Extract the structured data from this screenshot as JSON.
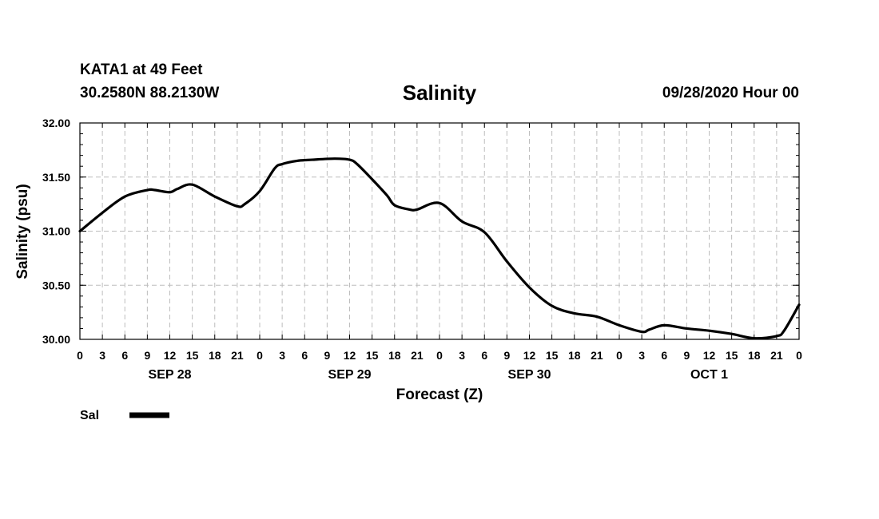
{
  "header": {
    "station": "KATA1 at 49 Feet",
    "coords": "30.2580N 88.2130W",
    "run": "09/28/2020 Hour 00"
  },
  "legend": {
    "label": "Sal"
  },
  "chart_data": {
    "type": "line",
    "title": "Salinity",
    "xlabel": "Forecast (Z)",
    "ylabel": "Salinity (psu)",
    "x_unit": "forecast hour",
    "xlim": [
      0,
      96
    ],
    "ylim": [
      30.0,
      32.0
    ],
    "yticks": [
      30.0,
      30.5,
      31.0,
      31.5,
      32.0
    ],
    "ytick_labels": [
      "30.00",
      "30.50",
      "31.00",
      "31.50",
      "32.00"
    ],
    "xtick_hours": [
      0,
      3,
      6,
      9,
      12,
      15,
      18,
      21,
      24,
      27,
      30,
      33,
      36,
      39,
      42,
      45,
      48,
      51,
      54,
      57,
      60,
      63,
      66,
      69,
      72,
      75,
      78,
      81,
      84,
      87,
      90,
      93,
      96
    ],
    "xtick_labels": [
      "0",
      "3",
      "6",
      "9",
      "12",
      "15",
      "18",
      "21",
      "0",
      "3",
      "6",
      "9",
      "12",
      "15",
      "18",
      "21",
      "0",
      "3",
      "6",
      "9",
      "12",
      "15",
      "18",
      "21",
      "0",
      "3",
      "6",
      "9",
      "12",
      "15",
      "18",
      "21",
      "0"
    ],
    "date_labels": [
      {
        "label": "SEP 28",
        "hour": 12
      },
      {
        "label": "SEP 29",
        "hour": 36
      },
      {
        "label": "SEP 30",
        "hour": 60
      },
      {
        "label": "OCT 1",
        "hour": 84
      }
    ],
    "grid": true,
    "legend_position": "bottom-left",
    "series": [
      {
        "name": "Sal",
        "x": [
          0,
          3,
          6,
          9,
          10,
          12,
          13,
          15,
          18,
          21,
          22,
          24,
          26,
          27,
          29,
          31,
          34,
          36,
          37,
          39,
          41,
          42,
          44,
          45,
          48,
          51,
          54,
          57,
          60,
          63,
          66,
          69,
          72,
          75,
          76,
          78,
          81,
          84,
          87,
          90,
          93,
          94,
          96
        ],
        "y": [
          31.0,
          31.17,
          31.32,
          31.38,
          31.38,
          31.36,
          31.39,
          31.43,
          31.32,
          31.23,
          31.25,
          31.37,
          31.58,
          31.62,
          31.65,
          31.66,
          31.67,
          31.66,
          31.62,
          31.48,
          31.33,
          31.24,
          31.2,
          31.2,
          31.26,
          31.09,
          30.99,
          30.72,
          30.48,
          30.31,
          30.24,
          30.21,
          30.13,
          30.07,
          30.09,
          30.13,
          30.1,
          30.08,
          30.05,
          30.01,
          30.03,
          30.08,
          30.32
        ]
      }
    ]
  }
}
